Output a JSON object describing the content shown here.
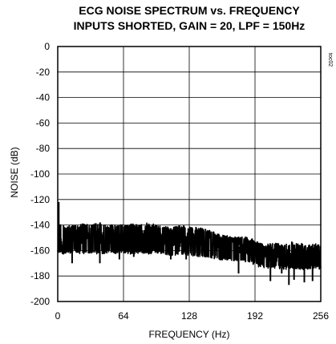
{
  "chart_data": {
    "type": "line",
    "title": "ECG NOISE SPECTRUM vs. FREQUENCY",
    "subtitle": "INPUTS SHORTED, GAIN = 20, LPF = 150Hz",
    "xlabel": "FREQUENCY (Hz)",
    "ylabel": "NOISE (dB)",
    "figure_code": "toc02",
    "xlim": [
      0,
      256
    ],
    "ylim": [
      -200,
      0
    ],
    "x_ticks": [
      "0",
      "64",
      "128",
      "192",
      "256"
    ],
    "y_ticks": [
      "0",
      "-20",
      "-40",
      "-60",
      "-80",
      "-100",
      "-120",
      "-140",
      "-160",
      "-180",
      "-200"
    ],
    "grid": true,
    "series": [
      {
        "color": "#000000",
        "envelope": {
          "x": [
            0,
            8,
            16,
            24,
            32,
            40,
            48,
            56,
            64,
            72,
            80,
            88,
            96,
            104,
            112,
            120,
            128,
            136,
            144,
            150,
            156,
            164,
            172,
            180,
            188,
            196,
            204,
            212,
            220,
            228,
            236,
            244,
            252,
            256
          ],
          "upper": [
            -138,
            -141,
            -140,
            -139,
            -140,
            -138,
            -140,
            -139,
            -140,
            -139,
            -140,
            -138,
            -140,
            -141,
            -142,
            -140,
            -141,
            -142,
            -143,
            -145,
            -147,
            -148,
            -149,
            -149,
            -150,
            -154,
            -155,
            -154,
            -155,
            -153,
            -154,
            -155,
            -154,
            -155
          ],
          "mean": [
            -150,
            -151,
            -150,
            -150,
            -151,
            -150,
            -151,
            -150,
            -151,
            -150,
            -151,
            -150,
            -151,
            -152,
            -152,
            -151,
            -152,
            -153,
            -153,
            -154,
            -155,
            -156,
            -157,
            -157,
            -158,
            -162,
            -163,
            -163,
            -164,
            -163,
            -164,
            -164,
            -163,
            -164
          ],
          "lower": [
            -162,
            -163,
            -162,
            -163,
            -162,
            -163,
            -162,
            -163,
            -162,
            -163,
            -162,
            -163,
            -162,
            -163,
            -164,
            -163,
            -164,
            -165,
            -165,
            -166,
            -167,
            -168,
            -168,
            -169,
            -170,
            -173,
            -174,
            -174,
            -175,
            -174,
            -175,
            -175,
            -174,
            -175
          ]
        },
        "spikes": [
          {
            "x": 1,
            "y": -122
          },
          {
            "x": 14,
            "y": -170
          },
          {
            "x": 41,
            "y": -170
          },
          {
            "x": 60,
            "y": -167
          },
          {
            "x": 74,
            "y": -165
          },
          {
            "x": 110,
            "y": -167
          },
          {
            "x": 125,
            "y": -167
          },
          {
            "x": 169,
            "y": -167
          },
          {
            "x": 176,
            "y": -178
          },
          {
            "x": 207,
            "y": -184
          },
          {
            "x": 218,
            "y": -178
          },
          {
            "x": 225,
            "y": -187
          },
          {
            "x": 230,
            "y": -183
          },
          {
            "x": 240,
            "y": -185
          },
          {
            "x": 248,
            "y": -184
          }
        ]
      }
    ]
  }
}
